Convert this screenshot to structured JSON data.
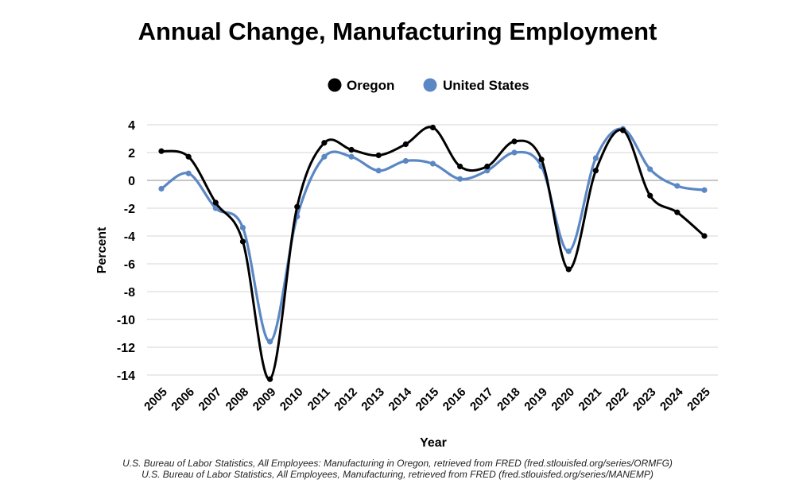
{
  "chart_data": {
    "type": "line",
    "title": "Annual Change, Manufacturing Employment",
    "xlabel": "Year",
    "ylabel": "Percent",
    "ylim": [
      -15,
      4
    ],
    "yticks": [
      4,
      2,
      0,
      -2,
      -4,
      -6,
      -8,
      -10,
      -12,
      -14
    ],
    "grid": true,
    "legend": "top-center",
    "categories": [
      "2005",
      "2006",
      "2007",
      "2008",
      "2009",
      "2010",
      "2011",
      "2012",
      "2013",
      "2014",
      "2015",
      "2016",
      "2017",
      "2018",
      "2019",
      "2020",
      "2021",
      "2022",
      "2023",
      "2024",
      "2025"
    ],
    "series": [
      {
        "name": "Oregon",
        "color": "#000000",
        "values": [
          2.1,
          1.7,
          -1.6,
          -4.4,
          -14.3,
          -1.9,
          2.7,
          2.2,
          1.8,
          2.6,
          3.8,
          1.0,
          1.0,
          2.8,
          1.5,
          -6.4,
          0.7,
          3.6,
          -1.1,
          -2.3,
          -4.0
        ]
      },
      {
        "name": "United States",
        "color": "#5b87c5",
        "values": [
          -0.6,
          0.5,
          -2.0,
          -3.4,
          -11.6,
          -2.6,
          1.7,
          1.7,
          0.7,
          1.4,
          1.2,
          0.1,
          0.7,
          2.0,
          1.0,
          -5.1,
          1.6,
          3.7,
          0.8,
          -0.4,
          -0.7
        ]
      }
    ]
  },
  "sources": [
    "U.S. Bureau of Labor Statistics, All Employees: Manufacturing in Oregon, retrieved from FRED (fred.stlouisfed.org/series/ORMFG)",
    "U.S. Bureau of Labor Statistics, All Employees, Manufacturing, retrieved from FRED (fred.stlouisfed.org/series/MANEMP)"
  ]
}
